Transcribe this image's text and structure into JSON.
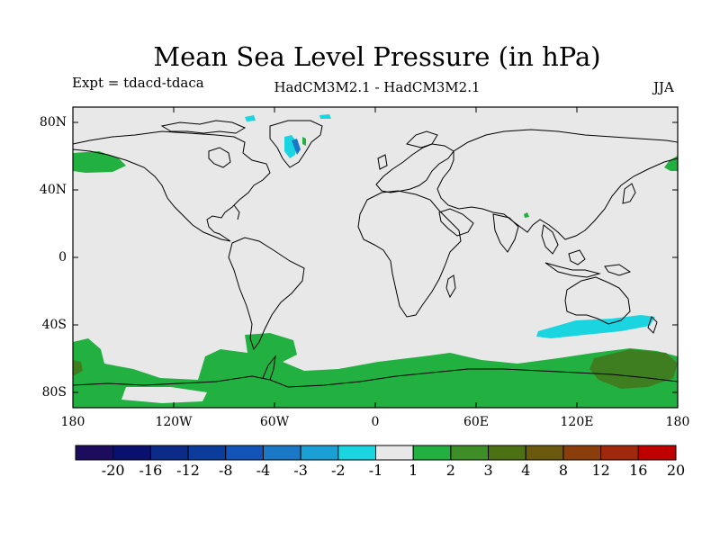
{
  "title": "Mean Sea Level Pressure (in hPa)",
  "experiment": "Expt = tdacd-tdaca",
  "models": "HadCM3M2.1 - HadCM3M2.1",
  "season": "JJA",
  "lat_labels": [
    "80N",
    "40N",
    "0",
    "40S",
    "80S"
  ],
  "lon_labels": [
    "180",
    "120W",
    "60W",
    "0",
    "60E",
    "120E",
    "180"
  ],
  "legend": {
    "labels": [
      "-20",
      "-16",
      "-12",
      "-8",
      "-4",
      "-3",
      "-2",
      "-1",
      "1",
      "2",
      "3",
      "4",
      "8",
      "12",
      "16",
      "20"
    ],
    "colors": [
      "#1d0b5e",
      "#0a1070",
      "#0c2b88",
      "#0b3c9c",
      "#1454b8",
      "#1a78c6",
      "#1aa0d4",
      "#1ad4e0",
      "#e8e8e8",
      "#22b040",
      "#3e8e28",
      "#4c7014",
      "#6a5a10",
      "#8a3e0c",
      "#a0280c",
      "#c00000"
    ]
  },
  "colors": {
    "ocean": "#e8e8e8",
    "green": "#22b040",
    "darkgreen": "#3e7e20",
    "cyan": "#1ad4e0",
    "blue": "#1a78c6"
  }
}
